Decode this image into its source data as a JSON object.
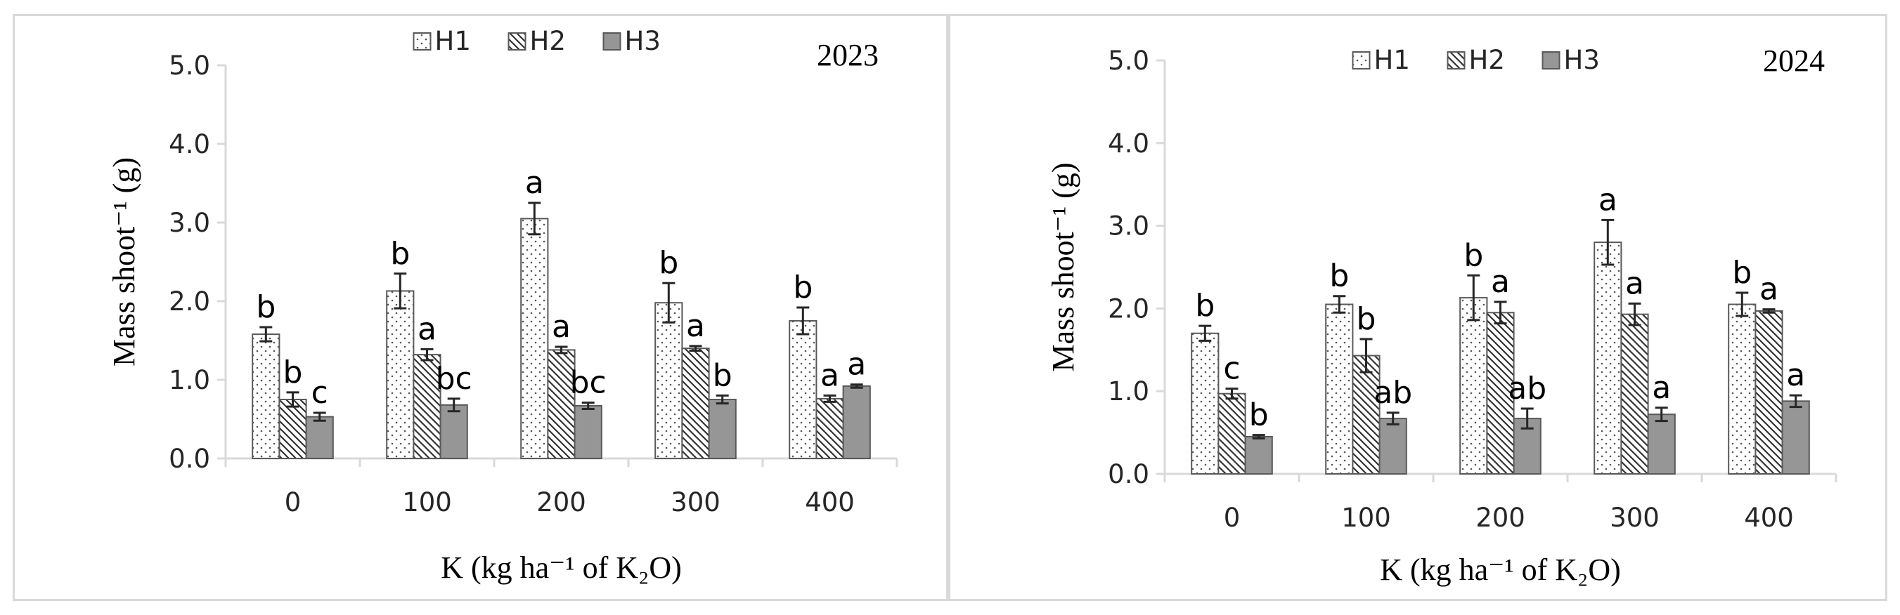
{
  "chart_data": [
    {
      "type": "bar",
      "title": "2023",
      "xlabel": "K (kg ha⁻¹ of K₂O)",
      "ylabel": "Mass shoot⁻¹ (g)",
      "ylim": [
        0,
        5
      ],
      "yticks": [
        "0.0",
        "1.0",
        "2.0",
        "3.0",
        "4.0",
        "5.0"
      ],
      "categories": [
        "0",
        "100",
        "200",
        "300",
        "400"
      ],
      "legend_position": "top-center",
      "grid": false,
      "series": [
        {
          "name": "H1",
          "values": [
            1.58,
            2.13,
            3.05,
            1.98,
            1.75
          ],
          "errors": [
            0.09,
            0.22,
            0.2,
            0.25,
            0.17
          ],
          "letters": [
            "b",
            "b",
            "a",
            "b",
            "b"
          ],
          "color": "#ffffff"
        },
        {
          "name": "H2",
          "values": [
            0.75,
            1.32,
            1.38,
            1.4,
            0.76
          ],
          "errors": [
            0.09,
            0.07,
            0.04,
            0.03,
            0.04
          ],
          "letters": [
            "b",
            "a",
            "a",
            "a",
            "a"
          ],
          "color": "#ffffff"
        },
        {
          "name": "H3",
          "values": [
            0.53,
            0.68,
            0.67,
            0.75,
            0.92
          ],
          "errors": [
            0.05,
            0.08,
            0.04,
            0.05,
            0.02
          ],
          "letters": [
            "c",
            "bc",
            "bc",
            "b",
            "a"
          ],
          "color": "#969696"
        }
      ]
    },
    {
      "type": "bar",
      "title": "2024",
      "xlabel": "K (kg ha⁻¹ of K₂O)",
      "ylabel": "Mass shoot⁻¹ (g)",
      "ylim": [
        0,
        5
      ],
      "yticks": [
        "0.0",
        "1.0",
        "2.0",
        "3.0",
        "4.0",
        "5.0"
      ],
      "categories": [
        "0",
        "100",
        "200",
        "300",
        "400"
      ],
      "legend_position": "top-center",
      "grid": false,
      "series": [
        {
          "name": "H1",
          "values": [
            1.7,
            2.05,
            2.13,
            2.8,
            2.05
          ],
          "errors": [
            0.09,
            0.1,
            0.27,
            0.27,
            0.14
          ],
          "letters": [
            "b",
            "b",
            "b",
            "a",
            "b"
          ],
          "color": "#ffffff"
        },
        {
          "name": "H2",
          "values": [
            0.97,
            1.43,
            1.95,
            1.93,
            1.97
          ],
          "errors": [
            0.06,
            0.2,
            0.13,
            0.13,
            0.02
          ],
          "letters": [
            "c",
            "b",
            "a",
            "a",
            "a"
          ],
          "color": "#ffffff"
        },
        {
          "name": "H3",
          "values": [
            0.45,
            0.67,
            0.67,
            0.72,
            0.88
          ],
          "errors": [
            0.02,
            0.07,
            0.12,
            0.08,
            0.07
          ],
          "letters": [
            "b",
            "ab",
            "ab",
            "a",
            "a"
          ],
          "color": "#969696"
        }
      ]
    }
  ]
}
